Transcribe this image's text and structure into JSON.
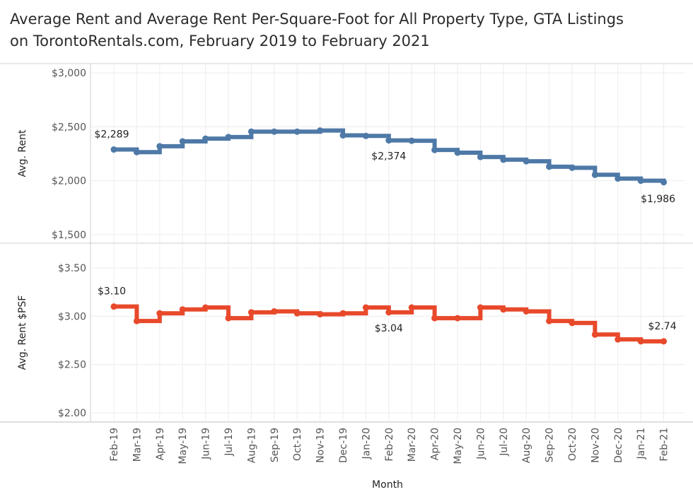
{
  "title_lines": [
    "Average Rent and Average Rent Per-Square-Foot for All Property Type, GTA Listings",
    "on TorontoRentals.com, February 2019 to February 2021"
  ],
  "chart_data": [
    {
      "type": "line",
      "step": true,
      "ylabel": "Avg. Rent",
      "xlabel": "Month",
      "ylim": [
        1500,
        3000
      ],
      "yticks": [
        1500,
        2000,
        2500,
        3000
      ],
      "ytick_labels": [
        "$1,500",
        "$2,000",
        "$2,500",
        "$3,000"
      ],
      "grid": true,
      "color": "#4e79a7",
      "categories": [
        "Feb-19",
        "Mar-19",
        "Apr-19",
        "May-19",
        "Jun-19",
        "Jul-19",
        "Aug-19",
        "Sep-19",
        "Oct-19",
        "Nov-19",
        "Dec-19",
        "Jan-20",
        "Feb-20",
        "Mar-20",
        "Apr-20",
        "May-20",
        "Jun-20",
        "Jul-20",
        "Aug-20",
        "Sep-20",
        "Oct-20",
        "Nov-20",
        "Dec-20",
        "Jan-21",
        "Feb-21"
      ],
      "values": [
        2289,
        2265,
        2320,
        2365,
        2390,
        2405,
        2455,
        2455,
        2455,
        2465,
        2420,
        2415,
        2374,
        2370,
        2285,
        2260,
        2220,
        2195,
        2180,
        2130,
        2120,
        2055,
        2020,
        2000,
        1986
      ],
      "annotations": [
        {
          "index": 0,
          "text": "$2,289"
        },
        {
          "index": 12,
          "text": "$2,374"
        },
        {
          "index": 24,
          "text": "$1,986"
        }
      ]
    },
    {
      "type": "line",
      "step": true,
      "ylabel": "Avg. Rent $PSF",
      "xlabel": "Month",
      "ylim": [
        2.0,
        3.5
      ],
      "yticks": [
        2.0,
        2.5,
        3.0,
        3.5
      ],
      "ytick_labels": [
        "$2.00",
        "$2.50",
        "$3.00",
        "$3.50"
      ],
      "grid": true,
      "color": "#e8492b",
      "categories": [
        "Feb-19",
        "Mar-19",
        "Apr-19",
        "May-19",
        "Jun-19",
        "Jul-19",
        "Aug-19",
        "Sep-19",
        "Oct-19",
        "Nov-19",
        "Dec-19",
        "Jan-20",
        "Feb-20",
        "Mar-20",
        "Apr-20",
        "May-20",
        "Jun-20",
        "Jul-20",
        "Aug-20",
        "Sep-20",
        "Oct-20",
        "Nov-20",
        "Dec-20",
        "Jan-21",
        "Feb-21"
      ],
      "values": [
        3.1,
        2.95,
        3.03,
        3.07,
        3.09,
        2.98,
        3.04,
        3.05,
        3.03,
        3.02,
        3.03,
        3.09,
        3.04,
        3.09,
        2.98,
        2.98,
        3.09,
        3.07,
        3.05,
        2.95,
        2.93,
        2.81,
        2.76,
        2.74,
        2.74
      ],
      "annotations": [
        {
          "index": 0,
          "text": "$3.10"
        },
        {
          "index": 12,
          "text": "$3.04"
        },
        {
          "index": 24,
          "text": "$2.74"
        }
      ]
    }
  ]
}
